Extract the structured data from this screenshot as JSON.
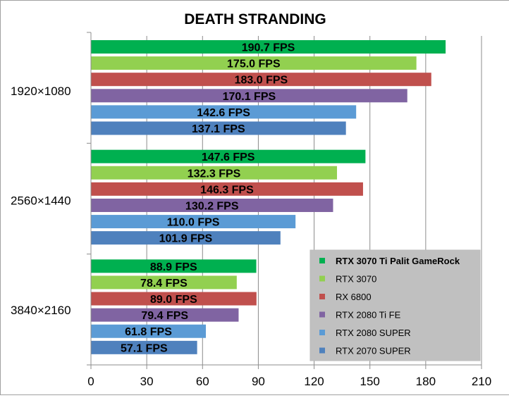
{
  "chart_data": {
    "type": "bar",
    "orientation": "horizontal",
    "title": "DEATH STRANDING",
    "xlabel": "",
    "ylabel": "",
    "xlim": [
      0,
      210
    ],
    "x_ticks": [
      0,
      30,
      60,
      90,
      120,
      150,
      180,
      210
    ],
    "grid": "vertical",
    "legend_position": "bottom-right",
    "value_suffix": " FPS",
    "categories": [
      "1920×1080",
      "2560×1440",
      "3840×2160"
    ],
    "series": [
      {
        "name": "RTX 3070 Ti Palit GameRock",
        "color": "#00b050",
        "bold": true,
        "values": [
          190.7,
          147.6,
          88.9
        ]
      },
      {
        "name": "RTX 3070",
        "color": "#92d050",
        "bold": false,
        "values": [
          175.0,
          132.3,
          78.4
        ]
      },
      {
        "name": "RX 6800",
        "color": "#c0504d",
        "bold": false,
        "values": [
          183.0,
          146.3,
          89.0
        ]
      },
      {
        "name": "RTX 2080 Ti FE",
        "color": "#8064a2",
        "bold": false,
        "values": [
          170.1,
          130.2,
          79.4
        ]
      },
      {
        "name": "RTX 2080 SUPER",
        "color": "#5b9bd5",
        "bold": false,
        "values": [
          142.6,
          110.0,
          61.8
        ]
      },
      {
        "name": "RTX 2070 SUPER",
        "color": "#4f81bd",
        "bold": false,
        "values": [
          137.1,
          101.9,
          57.1
        ]
      }
    ]
  }
}
